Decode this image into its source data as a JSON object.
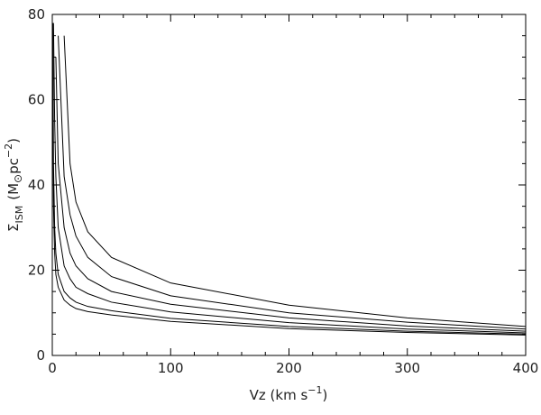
{
  "chart_data": {
    "type": "line",
    "x": [
      0.5,
      1,
      2,
      3,
      5,
      10,
      15,
      20,
      30,
      50,
      100,
      200,
      300,
      400
    ],
    "series": [
      {
        "color": "#000000",
        "values": [
          null,
          null,
          null,
          null,
          null,
          75,
          45,
          36,
          29,
          23,
          17,
          11.8,
          8.8,
          6.8
        ]
      },
      {
        "color": "#000000",
        "values": [
          null,
          null,
          null,
          null,
          75,
          42,
          33,
          28,
          23,
          18.5,
          14,
          10,
          7.8,
          6.2
        ]
      },
      {
        "color": "#000000",
        "values": [
          null,
          null,
          null,
          70,
          45,
          30,
          24,
          21,
          18,
          15,
          12,
          8.8,
          6.9,
          5.7
        ]
      },
      {
        "color": "#000000",
        "values": [
          null,
          78,
          55,
          42,
          30,
          21,
          18,
          16,
          14.5,
          12.5,
          10.2,
          7.7,
          6.2,
          5.3
        ]
      },
      {
        "color": "#000000",
        "values": [
          78,
          45,
          30,
          24,
          19,
          15,
          13.5,
          12.5,
          11.5,
          10.5,
          8.7,
          6.8,
          5.7,
          5.0
        ]
      },
      {
        "color": "#000000",
        "values": [
          60,
          35,
          24,
          19,
          16,
          13,
          11.8,
          11,
          10.3,
          9.5,
          8,
          6.3,
          5.4,
          4.8
        ]
      }
    ],
    "x_label": {
      "main": "Vz (km s",
      "sup": "−1",
      "end": ")"
    },
    "y_label": {
      "sym": "Σ",
      "sub": "ISM",
      "open": "(M",
      "sun": "⊙",
      "unit": "pc",
      "sup": "−2",
      "end": ")"
    },
    "xlim": [
      0,
      400
    ],
    "xticks": [
      0,
      100,
      200,
      300,
      400
    ],
    "ylim": [
      0,
      80
    ],
    "yticks": [
      0,
      20,
      40,
      60,
      80
    ]
  }
}
